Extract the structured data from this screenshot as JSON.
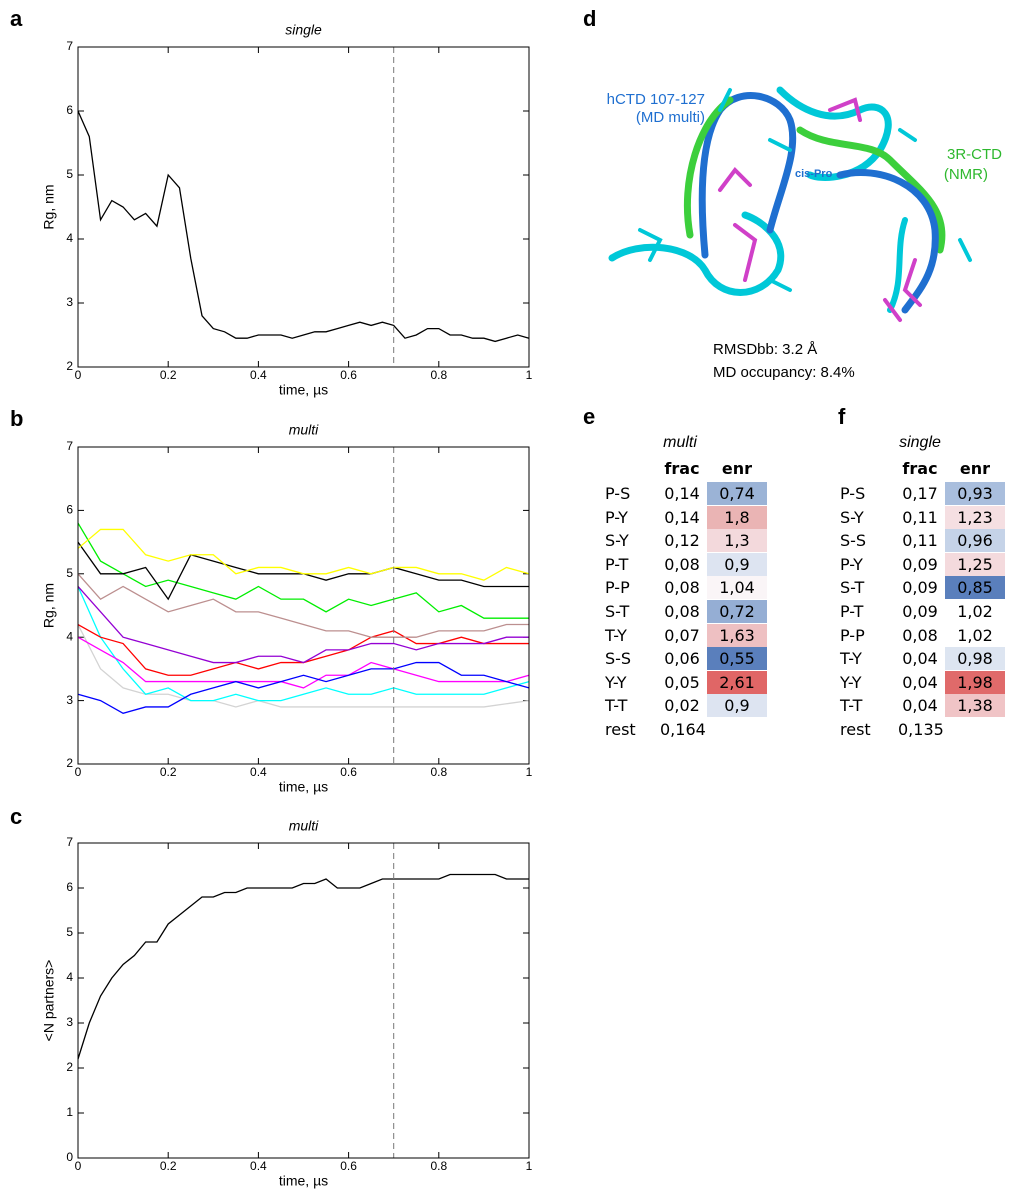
{
  "chart_data": [
    {
      "type": "line",
      "panel": "a",
      "title": "single",
      "x_label": "time, µs",
      "y_label": "Rg, nm",
      "xlim": [
        0,
        1
      ],
      "ylim": [
        2,
        7
      ],
      "xticks": [
        0,
        0.2,
        0.4,
        0.6,
        0.8,
        1
      ],
      "yticks": [
        2,
        3,
        4,
        5,
        6,
        7
      ],
      "vline": 0.7,
      "color": "#000000",
      "x": [
        0,
        0.025,
        0.05,
        0.075,
        0.1,
        0.125,
        0.15,
        0.175,
        0.2,
        0.225,
        0.25,
        0.275,
        0.3,
        0.325,
        0.35,
        0.375,
        0.4,
        0.425,
        0.45,
        0.475,
        0.5,
        0.525,
        0.55,
        0.575,
        0.6,
        0.625,
        0.65,
        0.675,
        0.7,
        0.725,
        0.75,
        0.775,
        0.8,
        0.825,
        0.85,
        0.875,
        0.9,
        0.925,
        0.95,
        0.975,
        1
      ],
      "values": [
        6.0,
        5.6,
        4.3,
        4.6,
        4.5,
        4.3,
        4.4,
        4.2,
        5.0,
        4.8,
        3.7,
        2.8,
        2.6,
        2.55,
        2.45,
        2.45,
        2.5,
        2.5,
        2.5,
        2.45,
        2.5,
        2.55,
        2.55,
        2.6,
        2.65,
        2.7,
        2.65,
        2.7,
        2.65,
        2.45,
        2.5,
        2.6,
        2.6,
        2.5,
        2.5,
        2.45,
        2.45,
        2.4,
        2.45,
        2.5,
        2.45
      ]
    },
    {
      "type": "line",
      "panel": "b",
      "title": "multi",
      "x_label": "time, µs",
      "y_label": "Rg, nm",
      "xlim": [
        0,
        1
      ],
      "ylim": [
        2,
        7
      ],
      "xticks": [
        0,
        0.2,
        0.4,
        0.6,
        0.8,
        1
      ],
      "yticks": [
        2,
        3,
        4,
        5,
        6,
        7
      ],
      "vline": 0.7,
      "x": [
        0,
        0.05,
        0.1,
        0.15,
        0.2,
        0.25,
        0.3,
        0.35,
        0.4,
        0.45,
        0.5,
        0.55,
        0.6,
        0.65,
        0.7,
        0.75,
        0.8,
        0.85,
        0.9,
        0.95,
        1
      ],
      "series": [
        {
          "color": "#d3d3d3",
          "values": [
            4.2,
            3.5,
            3.2,
            3.1,
            3.1,
            3.0,
            3.0,
            2.9,
            3.0,
            2.9,
            2.9,
            2.9,
            2.9,
            2.9,
            2.9,
            2.9,
            2.9,
            2.9,
            2.9,
            2.95,
            3.0
          ]
        },
        {
          "color": "#00ffff",
          "values": [
            4.8,
            4.0,
            3.5,
            3.1,
            3.2,
            3.0,
            3.0,
            3.1,
            3.0,
            3.0,
            3.1,
            3.2,
            3.1,
            3.1,
            3.2,
            3.1,
            3.1,
            3.1,
            3.1,
            3.2,
            3.3
          ]
        },
        {
          "color": "#ff00ff",
          "values": [
            4.0,
            3.8,
            3.6,
            3.3,
            3.3,
            3.3,
            3.3,
            3.3,
            3.3,
            3.3,
            3.2,
            3.4,
            3.4,
            3.6,
            3.5,
            3.4,
            3.3,
            3.3,
            3.3,
            3.3,
            3.4
          ]
        },
        {
          "color": "#0000ff",
          "values": [
            3.1,
            3.0,
            2.8,
            2.9,
            2.9,
            3.1,
            3.2,
            3.3,
            3.2,
            3.3,
            3.4,
            3.3,
            3.4,
            3.5,
            3.5,
            3.6,
            3.6,
            3.4,
            3.4,
            3.3,
            3.2
          ]
        },
        {
          "color": "#ff0000",
          "values": [
            4.2,
            4.0,
            3.9,
            3.5,
            3.4,
            3.4,
            3.5,
            3.6,
            3.5,
            3.6,
            3.6,
            3.7,
            3.8,
            4.0,
            4.1,
            3.9,
            3.9,
            4.0,
            3.9,
            3.9,
            3.9
          ]
        },
        {
          "color": "#9400d3",
          "values": [
            4.8,
            4.4,
            4.0,
            3.9,
            3.8,
            3.7,
            3.6,
            3.6,
            3.7,
            3.7,
            3.6,
            3.8,
            3.8,
            3.9,
            3.9,
            3.8,
            3.9,
            3.9,
            3.9,
            4.0,
            4.0
          ]
        },
        {
          "color": "#bc8f8f",
          "values": [
            5.0,
            4.6,
            4.8,
            4.6,
            4.4,
            4.5,
            4.6,
            4.4,
            4.4,
            4.3,
            4.2,
            4.1,
            4.1,
            4.0,
            4.0,
            4.0,
            4.1,
            4.1,
            4.1,
            4.2,
            4.2
          ]
        },
        {
          "color": "#00ee00",
          "values": [
            5.8,
            5.2,
            5.0,
            4.8,
            4.9,
            4.8,
            4.7,
            4.6,
            4.8,
            4.6,
            4.6,
            4.4,
            4.6,
            4.5,
            4.6,
            4.7,
            4.4,
            4.5,
            4.3,
            4.3,
            4.3
          ]
        },
        {
          "color": "#000000",
          "values": [
            5.5,
            5.0,
            5.0,
            5.1,
            4.6,
            5.3,
            5.2,
            5.1,
            5.0,
            5.0,
            5.0,
            4.9,
            5.0,
            5.0,
            5.1,
            5.0,
            4.9,
            4.9,
            4.8,
            4.8,
            4.8
          ]
        },
        {
          "color": "#ffff00",
          "values": [
            5.4,
            5.7,
            5.7,
            5.3,
            5.2,
            5.3,
            5.3,
            5.0,
            5.1,
            5.1,
            5.0,
            5.0,
            5.1,
            5.0,
            5.1,
            5.1,
            5.0,
            5.0,
            4.9,
            5.1,
            5.0
          ]
        }
      ]
    },
    {
      "type": "line",
      "panel": "c",
      "title": "multi",
      "x_label": "time, µs",
      "y_label": "<N partners>",
      "xlim": [
        0,
        1
      ],
      "ylim": [
        0,
        7
      ],
      "xticks": [
        0,
        0.2,
        0.4,
        0.6,
        0.8,
        1
      ],
      "yticks": [
        0,
        1,
        2,
        3,
        4,
        5,
        6,
        7
      ],
      "vline": 0.7,
      "color": "#000000",
      "x": [
        0,
        0.025,
        0.05,
        0.075,
        0.1,
        0.125,
        0.15,
        0.175,
        0.2,
        0.225,
        0.25,
        0.275,
        0.3,
        0.325,
        0.35,
        0.375,
        0.4,
        0.425,
        0.45,
        0.475,
        0.5,
        0.525,
        0.55,
        0.575,
        0.6,
        0.625,
        0.65,
        0.675,
        0.7,
        0.725,
        0.75,
        0.775,
        0.8,
        0.825,
        0.85,
        0.875,
        0.9,
        0.925,
        0.95,
        0.975,
        1
      ],
      "values": [
        2.2,
        3.0,
        3.6,
        4.0,
        4.3,
        4.5,
        4.8,
        4.8,
        5.2,
        5.4,
        5.6,
        5.8,
        5.8,
        5.9,
        5.9,
        6.0,
        6.0,
        6.0,
        6.0,
        6.0,
        6.1,
        6.1,
        6.2,
        6.0,
        6.0,
        6.0,
        6.1,
        6.2,
        6.2,
        6.2,
        6.2,
        6.2,
        6.2,
        6.3,
        6.3,
        6.3,
        6.3,
        6.3,
        6.2,
        6.2,
        6.2
      ]
    }
  ],
  "structure": {
    "panel": "d",
    "md_label": [
      "hCTD 107-127",
      "(MD multi)"
    ],
    "nmr_label": [
      "3R-CTD",
      "(NMR)"
    ],
    "cis_label": "cis-Pro",
    "rmsd": "RMSDbb: 3.2 Å",
    "occupancy": "MD occupancy: 8.4%"
  },
  "tables": [
    {
      "panel": "e",
      "title": "multi",
      "columns": [
        "frac",
        "enr"
      ],
      "rows": [
        {
          "label": "P-S",
          "frac": "0,14",
          "enr": "0,74",
          "color": "#9bb3d6"
        },
        {
          "label": "P-Y",
          "frac": "0,14",
          "enr": "1,8",
          "color": "#eab4b4"
        },
        {
          "label": "S-Y",
          "frac": "0,12",
          "enr": "1,3",
          "color": "#f3d9dc"
        },
        {
          "label": "P-T",
          "frac": "0,08",
          "enr": "0,9",
          "color": "#dde4f1"
        },
        {
          "label": "P-P",
          "frac": "0,08",
          "enr": "1,04",
          "color": "#faf5f7"
        },
        {
          "label": "S-T",
          "frac": "0,08",
          "enr": "0,72",
          "color": "#95aed4"
        },
        {
          "label": "T-Y",
          "frac": "0,07",
          "enr": "1,63",
          "color": "#eec0c2"
        },
        {
          "label": "S-S",
          "frac": "0,06",
          "enr": "0,55",
          "color": "#5a7fbc"
        },
        {
          "label": "Y-Y",
          "frac": "0,05",
          "enr": "2,61",
          "color": "#e06666"
        },
        {
          "label": "T-T",
          "frac": "0,02",
          "enr": "0,9",
          "color": "#dde4f1"
        },
        {
          "label": "rest",
          "frac": "0,164"
        }
      ]
    },
    {
      "panel": "f",
      "title": "single",
      "columns": [
        "frac",
        "enr"
      ],
      "rows": [
        {
          "label": "P-S",
          "frac": "0,17",
          "enr": "0,93",
          "color": "#a9bedd"
        },
        {
          "label": "S-Y",
          "frac": "0,11",
          "enr": "1,23",
          "color": "#f5dfe2"
        },
        {
          "label": "S-S",
          "frac": "0,11",
          "enr": "0,96",
          "color": "#c5d3e8"
        },
        {
          "label": "P-Y",
          "frac": "0,09",
          "enr": "1,25",
          "color": "#f4dadd"
        },
        {
          "label": "S-T",
          "frac": "0,09",
          "enr": "0,85",
          "color": "#5a7fbc"
        },
        {
          "label": "P-T",
          "frac": "0,09",
          "enr": "1,02",
          "color": "#ffffff"
        },
        {
          "label": "P-P",
          "frac": "0,08",
          "enr": "1,02",
          "color": "#ffffff"
        },
        {
          "label": "T-Y",
          "frac": "0,04",
          "enr": "0,98",
          "color": "#dde5f1"
        },
        {
          "label": "Y-Y",
          "frac": "0,04",
          "enr": "1,98",
          "color": "#e06a6a"
        },
        {
          "label": "T-T",
          "frac": "0,04",
          "enr": "1,38",
          "color": "#f0c4c6"
        },
        {
          "label": "rest",
          "frac": "0,135"
        }
      ]
    }
  ]
}
